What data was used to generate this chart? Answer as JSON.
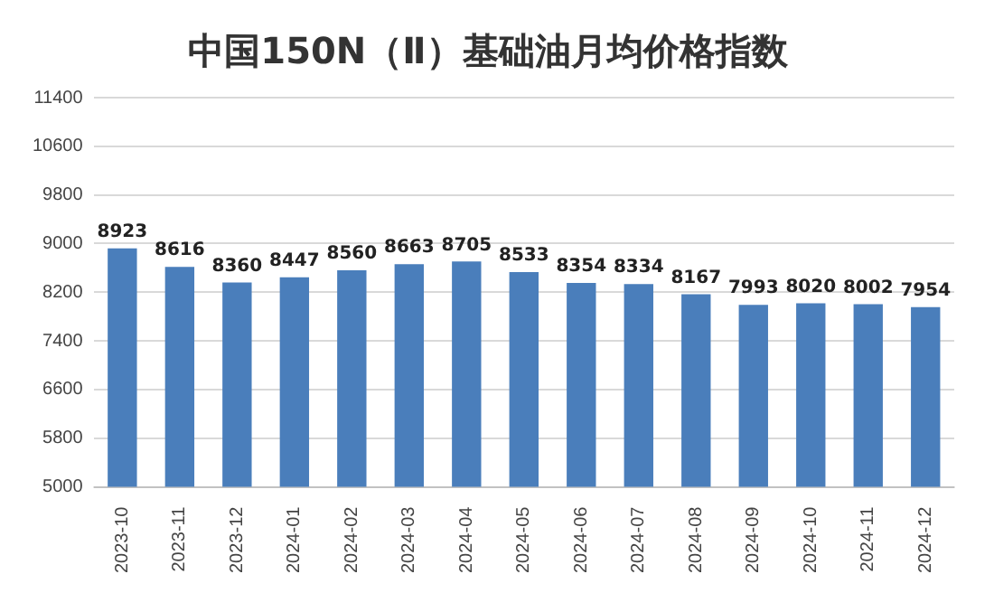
{
  "chart_data": {
    "type": "bar",
    "title": "中国150N（Ⅱ）基础油月均价格指数",
    "categories": [
      "2023-10",
      "2023-11",
      "2023-12",
      "2024-01",
      "2024-02",
      "2024-03",
      "2024-04",
      "2024-05",
      "2024-06",
      "2024-07",
      "2024-08",
      "2024-09",
      "2024-10",
      "2024-11",
      "2024-12"
    ],
    "values": [
      8923,
      8616,
      8360,
      8447,
      8560,
      8663,
      8705,
      8533,
      8354,
      8334,
      8167,
      7993,
      8020,
      8002,
      7954
    ],
    "color": "#4a7ebb",
    "ylim": [
      5000,
      11400
    ],
    "yticks": [
      5000,
      5800,
      6600,
      7400,
      8200,
      9000,
      9800,
      10600,
      11400
    ],
    "grid": "y",
    "data_labels": true
  }
}
